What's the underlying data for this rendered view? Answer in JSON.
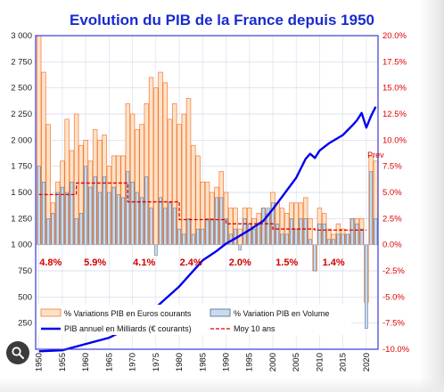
{
  "chart_data": {
    "type": "bar",
    "title": "Evolution du PIB de la France depuis 1950",
    "left_axis": {
      "ticks": [
        "3 000",
        "2 750",
        "2 500",
        "2 250",
        "2 000",
        "1 750",
        "1 500",
        "1 250",
        "1 000",
        "750",
        "500",
        "250"
      ],
      "range": [
        0,
        3000
      ]
    },
    "right_axis": {
      "ticks": [
        "20.0%",
        "17.5%",
        "15.0%",
        "12.5%",
        "10.0%",
        "7.5%",
        "5.0%",
        "2.5%",
        "0.0%",
        "-2.5%",
        "-5.0%",
        "-7.5%",
        "-10.0%"
      ],
      "range": [
        -10,
        20
      ]
    },
    "x_ticks": [
      "1950",
      "1955",
      "1960",
      "1965",
      "1970",
      "1975",
      "1980",
      "1985",
      "1990",
      "1995",
      "2000",
      "2005",
      "2010",
      "2015",
      "2020"
    ],
    "x_range": [
      1949.3,
      2022.5
    ],
    "years_start": 1950,
    "series": [
      {
        "name": "% Variations PIB en Euros courants",
        "color": "#f07a3a",
        "fill": "#ffe2c6",
        "values": [
          20.0,
          16.5,
          11.5,
          4.0,
          6.0,
          8.0,
          12.0,
          9.0,
          12.5,
          9.5,
          10.0,
          8.0,
          11.0,
          10.0,
          10.5,
          7.5,
          8.5,
          8.5,
          8.5,
          13.5,
          12.5,
          11.0,
          11.5,
          13.5,
          16.0,
          15.0,
          16.5,
          15.5,
          12.0,
          13.5,
          11.5,
          12.5,
          14.0,
          9.5,
          8.5,
          6.0,
          6.0,
          5.0,
          5.5,
          7.0,
          5.0,
          3.5,
          3.5,
          1.5,
          3.5,
          3.5,
          2.5,
          3.0,
          3.5,
          3.0,
          5.0,
          4.0,
          3.5,
          3.0,
          4.0,
          4.0,
          4.0,
          4.5,
          2.5,
          -2.5,
          3.5,
          3.0,
          1.5,
          1.0,
          2.0,
          1.5,
          1.0,
          2.5,
          2.5,
          2.5,
          -5.5,
          8.5,
          8.0
        ],
        "labels": [
          {
            "year": 2022,
            "text": "Prev"
          }
        ]
      },
      {
        "name": "% Variation PIB en Volume",
        "color": "#4a6a8c",
        "fill": "#c9dcee",
        "values": [
          7.5,
          6.0,
          2.5,
          3.0,
          5.0,
          5.5,
          5.0,
          6.0,
          2.5,
          3.0,
          7.5,
          5.5,
          6.5,
          5.0,
          6.5,
          5.0,
          5.5,
          4.8,
          4.5,
          7.0,
          6.0,
          5.0,
          4.5,
          6.5,
          3.5,
          -1.0,
          4.5,
          3.5,
          4.0,
          3.5,
          1.5,
          1.0,
          2.5,
          1.0,
          1.5,
          1.5,
          2.5,
          2.5,
          4.5,
          4.5,
          2.5,
          1.0,
          1.5,
          -0.5,
          2.5,
          2.0,
          1.5,
          2.0,
          3.5,
          3.5,
          4.0,
          2.0,
          1.0,
          1.0,
          2.5,
          1.5,
          2.5,
          2.5,
          0.5,
          -2.5,
          2.0,
          2.0,
          0.5,
          0.5,
          1.0,
          1.0,
          1.0,
          2.5,
          2.0,
          1.5,
          -8.0,
          7.0,
          2.5
        ]
      },
      {
        "name": "PIB annuel en Milliards (€ courants)",
        "color": "#0000ee",
        "x": [
          1950,
          1955,
          1960,
          1965,
          1970,
          1975,
          1980,
          1985,
          1988,
          1990,
          1992,
          1995,
          1998,
          2000,
          2005,
          2007,
          2008,
          2009,
          2010,
          2012,
          2015,
          2017,
          2018,
          2019,
          2020,
          2021,
          2022
        ],
        "values": [
          -20,
          -10,
          50,
          110,
          220,
          400,
          600,
          850,
          940,
          1010,
          1060,
          1140,
          1230,
          1340,
          1640,
          1820,
          1870,
          1830,
          1900,
          1970,
          2050,
          2140,
          2190,
          2260,
          2120,
          2230,
          2320
        ]
      },
      {
        "name": "Moy 10 ans",
        "color": "#e00000",
        "dash": true,
        "segments": [
          {
            "from": 1950,
            "to": 1958,
            "value": 4.8
          },
          {
            "from": 1958,
            "to": 1969,
            "value": 5.9
          },
          {
            "from": 1969,
            "to": 1980,
            "value": 4.1
          },
          {
            "from": 1980,
            "to": 1990,
            "value": 2.4
          },
          {
            "from": 1990,
            "to": 2000,
            "value": 2.0
          },
          {
            "from": 2000,
            "to": 2009,
            "value": 1.5
          },
          {
            "from": 2009,
            "to": 2020,
            "value": 1.4
          }
        ]
      }
    ],
    "averages": [
      {
        "text": "4.8%",
        "year": 1952.5
      },
      {
        "text": "5.9%",
        "year": 1962.0
      },
      {
        "text": "4.1%",
        "year": 1972.5
      },
      {
        "text": "2.4%",
        "year": 1982.5
      },
      {
        "text": "2.0%",
        "year": 1993.0
      },
      {
        "text": "1.5%",
        "year": 2003.0
      },
      {
        "text": "1.4%",
        "year": 2013.0
      }
    ],
    "grid": true,
    "legend_position": "bottom-left"
  },
  "legend": {
    "items": [
      {
        "label": "% Variations PIB en Euros courants"
      },
      {
        "label": "% Variation PIB en Volume"
      },
      {
        "label": "PIB annuel en Milliards (€ courants)"
      },
      {
        "label": "Moy 10 ans"
      }
    ]
  },
  "overlay": {
    "icon": "magnifier-icon",
    "colors": {
      "title": "#1a2bd0",
      "axis_left": "#222222",
      "axis_right": "#e00000",
      "plot_border": "#3a3ad8"
    }
  }
}
